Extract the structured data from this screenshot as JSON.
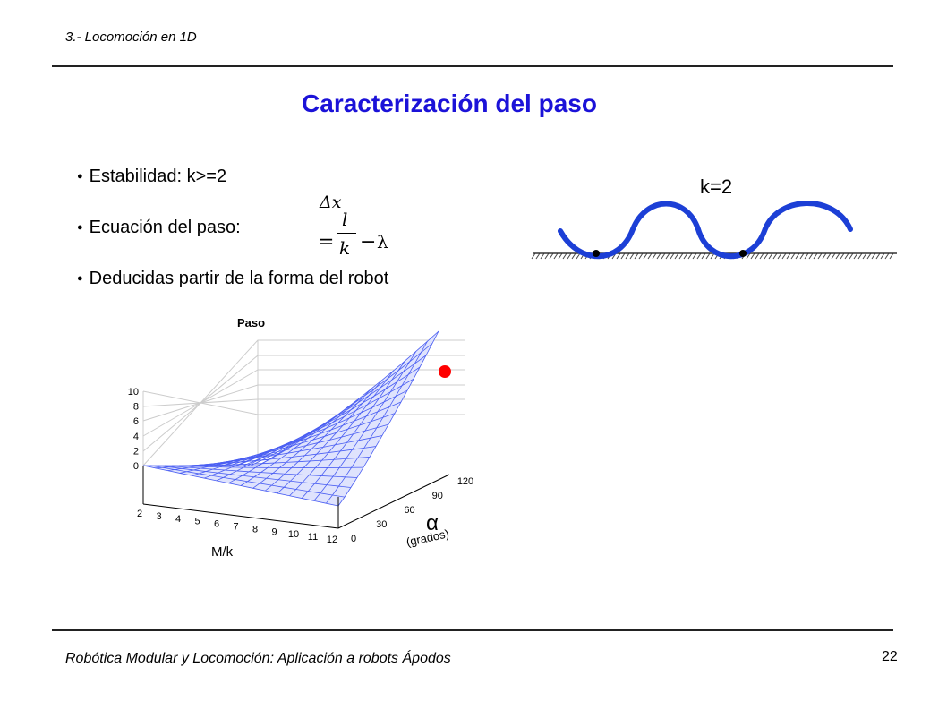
{
  "header": {
    "section": "3.- Locomoción en 1D"
  },
  "title": "Caracterización del paso",
  "bullets": [
    {
      "marker": "●",
      "text": "Estabilidad: k>=2"
    },
    {
      "marker": "●",
      "text": "Ecuación del paso:"
    },
    {
      "marker": "●",
      "text": "Deducidas partir de la forma del robot"
    }
  ],
  "equation": {
    "numerator": "Δx",
    "equals": "=",
    "l": "l",
    "k": "k",
    "minus": "−",
    "lambda": "λ"
  },
  "wave_figure": {
    "label": "k=2",
    "curve_color": "#1c3fd6"
  },
  "plot": {
    "title": "Paso",
    "z_ticks": [
      "0",
      "2",
      "4",
      "6",
      "8",
      "10"
    ],
    "mk_ticks": [
      "2",
      "3",
      "4",
      "5",
      "6",
      "7",
      "8",
      "9",
      "10",
      "11",
      "12"
    ],
    "alpha_ticks": [
      "0",
      "30",
      "60",
      "90",
      "120"
    ],
    "xlabel": "M/k",
    "alpha_symbol": "α",
    "alpha_unit": "(grados)",
    "surface_color": "#4a5ef2",
    "max_point_color": "#ff0000"
  },
  "footer": {
    "text": "Robótica Modular y Locomoción: Aplicación a robots Ápodos",
    "page": "22"
  }
}
